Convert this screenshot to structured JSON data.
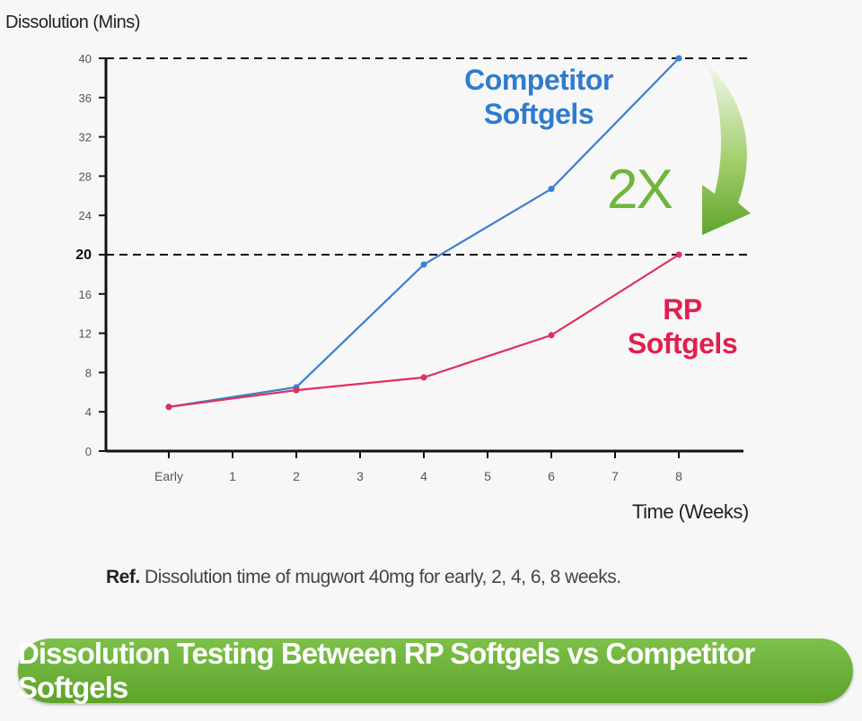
{
  "chart_data": {
    "type": "line",
    "ylabel": "Dissolution (Mins)",
    "xlabel": "Time (Weeks)",
    "ylim": [
      0,
      40
    ],
    "yticks": [
      0,
      4,
      8,
      12,
      16,
      20,
      24,
      28,
      32,
      36,
      40
    ],
    "categories": [
      "Early",
      "1",
      "2",
      "3",
      "4",
      "5",
      "6",
      "7",
      "8"
    ],
    "series": [
      {
        "name": "Competitor Softgels",
        "color": "#3a7fd0",
        "points": [
          {
            "x": "Early",
            "y": 4.5
          },
          {
            "x": "2",
            "y": 6.5
          },
          {
            "x": "4",
            "y": 19
          },
          {
            "x": "6",
            "y": 26.7
          },
          {
            "x": "8",
            "y": 40
          }
        ]
      },
      {
        "name": "RP Softgels",
        "color": "#e0305a",
        "points": [
          {
            "x": "Early",
            "y": 4.5
          },
          {
            "x": "2",
            "y": 6.2
          },
          {
            "x": "4",
            "y": 7.5
          },
          {
            "x": "6",
            "y": 11.8
          },
          {
            "x": "8",
            "y": 20
          }
        ]
      }
    ],
    "reference_lines": [
      40,
      20
    ],
    "annotation": "2X",
    "grid": false
  },
  "labels": {
    "competitor_line1": "Competitor",
    "competitor_line2": "Softgels",
    "rp_line1": "RP",
    "rp_line2": "Softgels"
  },
  "note": {
    "prefix": "Ref.",
    "text": " Dissolution time of mugwort 40mg for early, 2, 4, 6, 8 weeks."
  },
  "banner": {
    "text": "Dissolution Testing Between RP Softgels vs Competitor Softgels",
    "color": "#6cb33a"
  }
}
